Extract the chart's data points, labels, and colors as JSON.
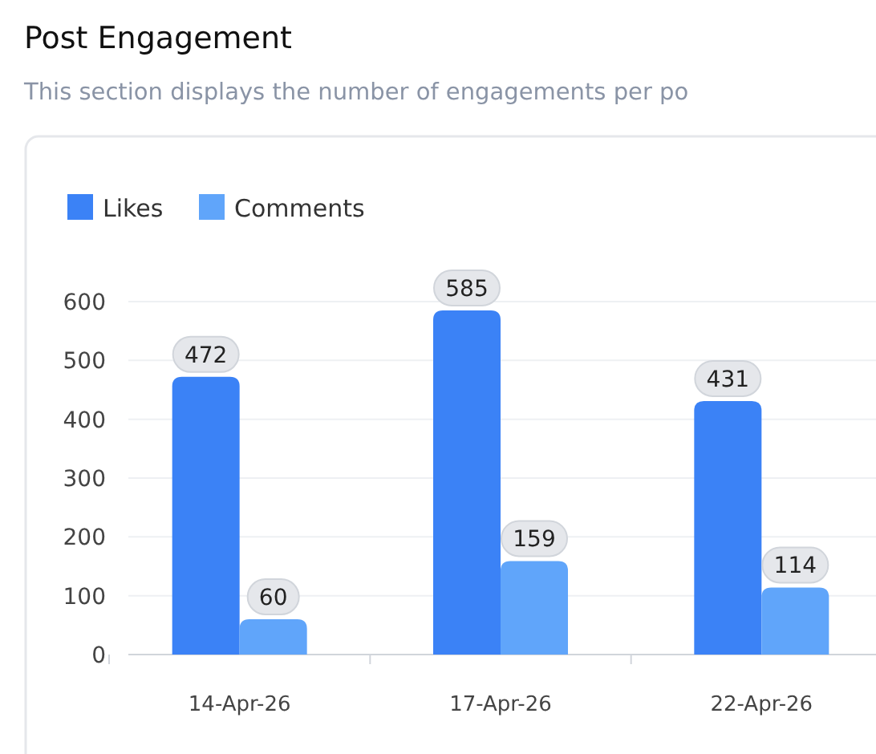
{
  "chart_data": {
    "type": "bar",
    "title": "Post Engagement",
    "subtitle": "This section displays the number of engagements per po",
    "categories": [
      "14-Apr-26",
      "17-Apr-26",
      "22-Apr-26"
    ],
    "series": [
      {
        "name": "Likes",
        "color": "#3b82f6",
        "values": [
          472,
          585,
          431
        ]
      },
      {
        "name": "Comments",
        "color": "#60a5fa",
        "values": [
          60,
          159,
          114
        ]
      }
    ],
    "ylim": [
      0,
      600
    ],
    "yticks": [
      0,
      100,
      200,
      300,
      400,
      500,
      600
    ],
    "grid": "y",
    "legend": "top left",
    "data_labels": true
  }
}
